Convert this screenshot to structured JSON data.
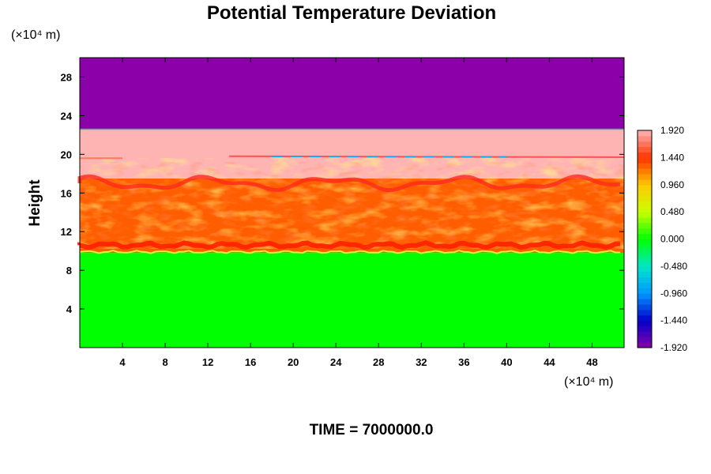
{
  "chart_data": {
    "type": "heatmap",
    "title": "Potential Temperature Deviation",
    "ylabel": "Height",
    "y_unit_label": "(×10⁴ m)",
    "x_unit_label": "(×10⁴ m)",
    "time_label": "TIME = 7000000.0",
    "x_range": [
      0,
      51
    ],
    "y_range": [
      0,
      30
    ],
    "x_ticks": [
      4,
      8,
      12,
      16,
      20,
      24,
      28,
      32,
      36,
      40,
      44,
      48
    ],
    "x_tick_labels": [
      "4",
      "8",
      "12",
      "16",
      "20",
      "24",
      "28",
      "32",
      "36",
      "40",
      "44",
      "48"
    ],
    "y_ticks": [
      4,
      8,
      12,
      16,
      20,
      24,
      28
    ],
    "y_tick_labels": [
      "4",
      "8",
      "12",
      "16",
      "20",
      "24",
      "28"
    ],
    "colorbar": {
      "range": [
        -1.92,
        1.92
      ],
      "tick_values": [
        1.92,
        1.44,
        0.96,
        0.48,
        0.0,
        -0.48,
        -0.96,
        -1.44,
        -1.92
      ],
      "tick_labels": [
        "1.920",
        "1.440",
        "0.960",
        "0.480",
        "0.000",
        "-0.480",
        "-0.960",
        "-1.440",
        "-1.920"
      ]
    },
    "layers": [
      {
        "y_bottom": 0,
        "y_top": 9.8,
        "value": 0.0
      },
      {
        "y_bottom": 9.8,
        "y_top": 17.5,
        "value": 1.3
      },
      {
        "y_bottom": 17.5,
        "y_top": 22.6,
        "value": 1.92
      },
      {
        "y_bottom": 22.6,
        "y_top": 30,
        "value": -1.92
      }
    ],
    "grid": false
  }
}
